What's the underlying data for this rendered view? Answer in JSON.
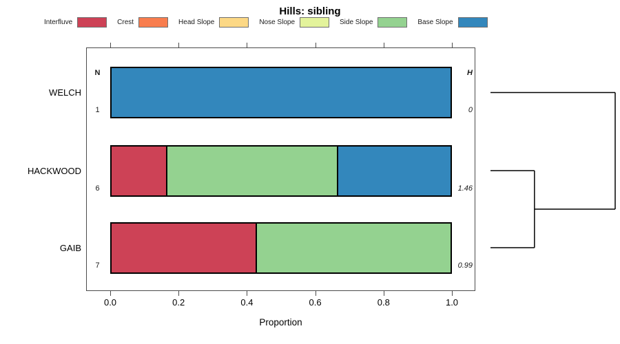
{
  "title": "Hills: sibling",
  "legend": {
    "items": [
      {
        "label": "Interfluve",
        "color": "#cd4256"
      },
      {
        "label": "Crest",
        "color": "#f87d4e"
      },
      {
        "label": "Head Slope",
        "color": "#fcd885"
      },
      {
        "label": "Nose Slope",
        "color": "#e3f39b"
      },
      {
        "label": "Side Slope",
        "color": "#94d290"
      },
      {
        "label": "Base Slope",
        "color": "#3387bc"
      }
    ]
  },
  "chart_data": {
    "type": "bar",
    "orientation": "horizontal",
    "stacked": true,
    "title": "Hills: sibling",
    "xlabel": "Proportion",
    "xlim": [
      0,
      1
    ],
    "xticks": [
      0,
      0.2,
      0.4,
      0.6,
      0.8,
      1
    ],
    "xtick_labels": [
      "0.0",
      "0.2",
      "0.4",
      "0.6",
      "0.8",
      "1.0"
    ],
    "legend_position": "top",
    "grid": false,
    "categories": [
      "WELCH",
      "HACKWOOD",
      "GAIB"
    ],
    "series": [
      {
        "name": "Interfluve",
        "color": "#cd4256",
        "values": [
          0,
          0.167,
          0.429
        ]
      },
      {
        "name": "Crest",
        "color": "#f87d4e",
        "values": [
          0,
          0,
          0
        ]
      },
      {
        "name": "Head Slope",
        "color": "#fcd885",
        "values": [
          0,
          0,
          0
        ]
      },
      {
        "name": "Nose Slope",
        "color": "#e3f39b",
        "values": [
          0,
          0,
          0
        ]
      },
      {
        "name": "Side Slope",
        "color": "#94d290",
        "values": [
          0,
          0.5,
          0.571
        ]
      },
      {
        "name": "Base Slope",
        "color": "#3387bc",
        "values": [
          1.0,
          0.333,
          0
        ]
      }
    ],
    "columns": {
      "left_header": "N",
      "right_header": "H",
      "left_values": [
        "1",
        "6",
        "7"
      ],
      "right_values": [
        "0",
        "1.46",
        "0.99"
      ]
    },
    "dendrogram": {
      "structure": "((HACKWOOD,GAIB),WELCH)",
      "merge_heights_rel": [
        0.42,
        1.0
      ]
    }
  }
}
